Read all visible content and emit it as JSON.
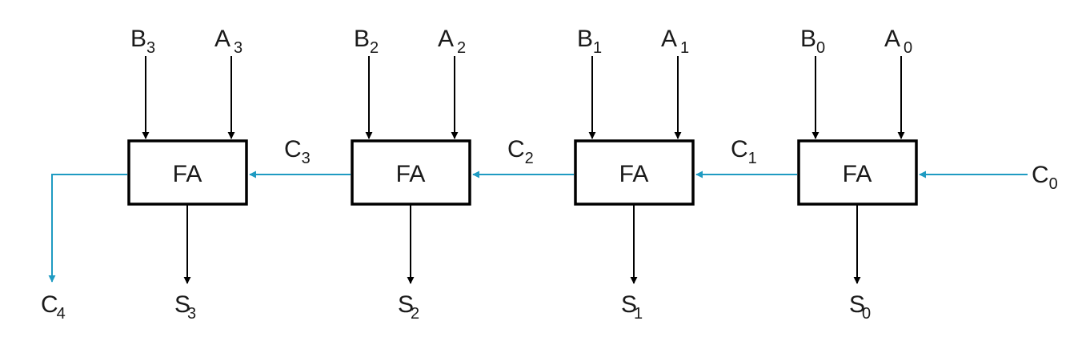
{
  "diagram": {
    "type": "4-bit ripple carry adder",
    "colors": {
      "line": "#000000",
      "carry": "#1f9bc2",
      "text": "#1a1a1a"
    },
    "stages": [
      {
        "label": "FA",
        "b": {
          "base": "B",
          "sub": "3"
        },
        "a": {
          "base": "A",
          "sub": "3"
        },
        "s": {
          "base": "S",
          "sub": "3"
        }
      },
      {
        "label": "FA",
        "b": {
          "base": "B",
          "sub": "2"
        },
        "a": {
          "base": "A",
          "sub": "2"
        },
        "s": {
          "base": "S",
          "sub": "2"
        }
      },
      {
        "label": "FA",
        "b": {
          "base": "B",
          "sub": "1"
        },
        "a": {
          "base": "A",
          "sub": "1"
        },
        "s": {
          "base": "S",
          "sub": "1"
        }
      },
      {
        "label": "FA",
        "b": {
          "base": "B",
          "sub": "0"
        },
        "a": {
          "base": "A",
          "sub": "0"
        },
        "s": {
          "base": "S",
          "sub": "0"
        }
      }
    ],
    "carries": [
      {
        "base": "C",
        "sub": "3"
      },
      {
        "base": "C",
        "sub": "2"
      },
      {
        "base": "C",
        "sub": "1"
      }
    ],
    "carry_in": {
      "base": "C",
      "sub": "0"
    },
    "carry_out": {
      "base": "C",
      "sub": "4"
    }
  }
}
